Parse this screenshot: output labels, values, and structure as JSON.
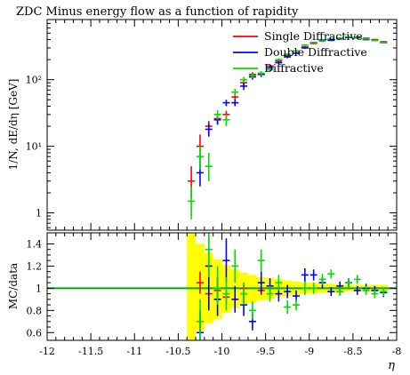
{
  "chart_data": {
    "type": "scatter",
    "title": "ZDC Minus energy flow as a function of rapidity",
    "xlabel": "η",
    "ylabel_top": "1/N, dE/dη [GeV]",
    "ylabel_bottom": "MC/data",
    "xlim": [
      -12,
      -8
    ],
    "ylim_top": [
      0.55,
      800
    ],
    "yscale_top": "log",
    "ylim_bottom": [
      0.53,
      1.5
    ],
    "x_ticks": [
      -12,
      -11.5,
      -11,
      -10.5,
      -10,
      -9.5,
      -9,
      -8.5,
      -8
    ],
    "x_tick_labels": [
      "-12",
      "-11.5",
      "-11",
      "-10.5",
      "-10",
      "-9.5",
      "-9",
      "-8.5",
      "-8"
    ],
    "y_ticks_top": [
      1,
      10,
      100
    ],
    "y_tick_labels_top": [
      "1",
      "10¹",
      "10²"
    ],
    "y_ticks_bottom": [
      0.6,
      0.8,
      1.0,
      1.2,
      1.4
    ],
    "y_tick_labels_bottom": [
      "0.6",
      "0.8",
      "1",
      "1.2",
      "1.4"
    ],
    "legend_position": "top-right",
    "series": [
      {
        "name": "Single Diffractive",
        "color": "#ff0000",
        "points": [
          [
            -10.35,
            3.0,
            1.7,
            5.0
          ],
          [
            -10.25,
            10.0,
            6.0,
            15.0
          ],
          [
            -10.15,
            20.0,
            15.0,
            24.0
          ],
          [
            -10.05,
            26.0,
            22.0,
            30.0
          ],
          [
            -9.95,
            30.0,
            25.0,
            34.0
          ],
          [
            -9.85,
            55.0,
            48.0,
            62.0
          ],
          [
            -9.75,
            90.0,
            80.0,
            100.0
          ],
          [
            -9.65,
            120.0,
            110.0,
            130.0
          ],
          [
            -9.55,
            120.0,
            110.0,
            130.0
          ],
          [
            -9.45,
            160.0,
            150.0,
            170.0
          ],
          [
            -9.35,
            190.0,
            180.0,
            200.0
          ],
          [
            -9.25,
            230.0,
            220.0,
            240.0
          ],
          [
            -9.15,
            270.0,
            260.0,
            280.0
          ],
          [
            -9.05,
            310.0,
            300.0,
            320.0
          ],
          [
            -8.95,
            350.0,
            340.0,
            360.0
          ],
          [
            -8.85,
            380.0,
            370.0,
            390.0
          ],
          [
            -8.75,
            400.0,
            390.0,
            410.0
          ],
          [
            -8.65,
            420.0,
            410.0,
            430.0
          ],
          [
            -8.55,
            440.0,
            430.0,
            450.0
          ],
          [
            -8.45,
            430.0,
            420.0,
            440.0
          ],
          [
            -8.35,
            420.0,
            410.0,
            430.0
          ],
          [
            -8.25,
            400.0,
            390.0,
            410.0
          ],
          [
            -8.15,
            370.0,
            360.0,
            380.0
          ]
        ]
      },
      {
        "name": "Double Diffractive",
        "color": "#0000ff",
        "points": [
          [
            -10.25,
            4.0,
            2.5,
            6.0
          ],
          [
            -10.15,
            18.0,
            14.0,
            22.0
          ],
          [
            -10.05,
            25.0,
            21.0,
            29.0
          ],
          [
            -9.95,
            45.0,
            40.0,
            50.0
          ],
          [
            -9.85,
            45.0,
            40.0,
            50.0
          ],
          [
            -9.75,
            80.0,
            70.0,
            90.0
          ],
          [
            -9.65,
            110.0,
            100.0,
            120.0
          ],
          [
            -9.55,
            120.0,
            110.0,
            130.0
          ],
          [
            -9.45,
            150.0,
            140.0,
            160.0
          ],
          [
            -9.35,
            180.0,
            170.0,
            190.0
          ],
          [
            -9.25,
            220.0,
            210.0,
            230.0
          ],
          [
            -9.15,
            250.0,
            240.0,
            260.0
          ],
          [
            -9.05,
            300.0,
            290.0,
            310.0
          ],
          [
            -8.95,
            360.0,
            350.0,
            370.0
          ],
          [
            -8.85,
            390.0,
            380.0,
            400.0
          ],
          [
            -8.75,
            390.0,
            380.0,
            400.0
          ],
          [
            -8.65,
            410.0,
            400.0,
            420.0
          ],
          [
            -8.55,
            430.0,
            420.0,
            440.0
          ],
          [
            -8.45,
            430.0,
            420.0,
            440.0
          ],
          [
            -8.35,
            400.0,
            390.0,
            410.0
          ],
          [
            -8.25,
            390.0,
            380.0,
            400.0
          ],
          [
            -8.15,
            360.0,
            350.0,
            370.0
          ]
        ]
      },
      {
        "name": "Diffractive",
        "color": "#00dd00",
        "points": [
          [
            -10.35,
            1.5,
            0.8,
            2.5
          ],
          [
            -10.25,
            7.0,
            4.5,
            10.0
          ],
          [
            -10.15,
            5.0,
            3.0,
            8.0
          ],
          [
            -10.05,
            30.0,
            25.0,
            35.0
          ],
          [
            -9.95,
            25.0,
            20.0,
            30.0
          ],
          [
            -9.85,
            65.0,
            57.0,
            73.0
          ],
          [
            -9.75,
            100.0,
            90.0,
            110.0
          ],
          [
            -9.65,
            115.0,
            105.0,
            125.0
          ],
          [
            -9.55,
            125.0,
            115.0,
            135.0
          ],
          [
            -9.45,
            140.0,
            130.0,
            150.0
          ],
          [
            -9.35,
            200.0,
            190.0,
            210.0
          ],
          [
            -9.25,
            240.0,
            230.0,
            250.0
          ],
          [
            -9.15,
            270.0,
            260.0,
            280.0
          ],
          [
            -9.05,
            330.0,
            320.0,
            340.0
          ],
          [
            -8.95,
            360.0,
            350.0,
            370.0
          ],
          [
            -8.85,
            380.0,
            370.0,
            390.0
          ],
          [
            -8.75,
            410.0,
            400.0,
            420.0
          ],
          [
            -8.65,
            420.0,
            410.0,
            430.0
          ],
          [
            -8.55,
            440.0,
            430.0,
            450.0
          ],
          [
            -8.45,
            420.0,
            410.0,
            430.0
          ],
          [
            -8.35,
            410.0,
            400.0,
            420.0
          ],
          [
            -8.25,
            390.0,
            380.0,
            400.0
          ],
          [
            -8.15,
            360.0,
            350.0,
            370.0
          ]
        ]
      }
    ],
    "ratio_band": {
      "color": "#ffff00",
      "bins": [
        [
          -10.4,
          -10.3,
          0.53,
          1.5
        ],
        [
          -10.3,
          -10.2,
          0.62,
          1.4
        ],
        [
          -10.2,
          -10.1,
          0.68,
          1.32
        ],
        [
          -10.1,
          -10.0,
          0.72,
          1.26
        ],
        [
          -10.0,
          -9.9,
          0.78,
          1.21
        ],
        [
          -9.9,
          -9.8,
          0.82,
          1.17
        ],
        [
          -9.8,
          -9.7,
          0.85,
          1.14
        ],
        [
          -9.7,
          -9.6,
          0.87,
          1.12
        ],
        [
          -9.6,
          -9.5,
          0.89,
          1.1
        ],
        [
          -9.5,
          -9.4,
          0.9,
          1.09
        ],
        [
          -9.4,
          -9.3,
          0.92,
          1.08
        ],
        [
          -9.3,
          -9.2,
          0.93,
          1.07
        ],
        [
          -9.2,
          -9.1,
          0.94,
          1.06
        ],
        [
          -9.1,
          -9.0,
          0.95,
          1.05
        ],
        [
          -9.0,
          -8.9,
          0.95,
          1.05
        ],
        [
          -8.9,
          -8.8,
          0.96,
          1.04
        ],
        [
          -8.8,
          -8.7,
          0.96,
          1.04
        ],
        [
          -8.7,
          -8.6,
          0.96,
          1.04
        ],
        [
          -8.6,
          -8.5,
          0.97,
          1.03
        ],
        [
          -8.5,
          -8.4,
          0.97,
          1.03
        ],
        [
          -8.4,
          -8.3,
          0.97,
          1.03
        ],
        [
          -8.3,
          -8.2,
          0.97,
          1.03
        ],
        [
          -8.2,
          -8.1,
          0.97,
          1.03
        ]
      ]
    },
    "ratio_reference": {
      "value": 1.0,
      "color": "#00aa00"
    },
    "ratio_series": [
      {
        "name": "Single Diffractive",
        "color": "#ff0000",
        "points": [
          [
            -10.25,
            1.05,
            0.95,
            1.15
          ],
          [
            -10.15,
            0.95,
            0.88,
            1.02
          ],
          [
            -10.05,
            0.98,
            0.92,
            1.04
          ],
          [
            -9.95,
            0.92,
            0.86,
            0.98
          ],
          [
            -9.75,
            1.0,
            0.95,
            1.05
          ],
          [
            -9.55,
            0.98,
            0.94,
            1.02
          ]
        ]
      },
      {
        "name": "Double Diffractive",
        "color": "#0000ff",
        "points": [
          [
            -10.25,
            0.6,
            0.45,
            0.8
          ],
          [
            -10.15,
            1.2,
            0.8,
            1.55
          ],
          [
            -10.05,
            0.9,
            0.75,
            1.1
          ],
          [
            -9.95,
            1.25,
            1.05,
            1.45
          ],
          [
            -9.85,
            0.9,
            0.78,
            1.02
          ],
          [
            -9.75,
            0.85,
            0.75,
            0.95
          ],
          [
            -9.65,
            0.7,
            0.62,
            0.78
          ],
          [
            -9.55,
            1.05,
            0.95,
            1.15
          ],
          [
            -9.45,
            1.02,
            0.95,
            1.09
          ],
          [
            -9.35,
            0.95,
            0.88,
            1.02
          ],
          [
            -9.25,
            0.97,
            0.91,
            1.03
          ],
          [
            -9.15,
            0.93,
            0.88,
            0.98
          ],
          [
            -9.05,
            1.12,
            1.06,
            1.18
          ],
          [
            -8.95,
            1.12,
            1.07,
            1.17
          ],
          [
            -8.85,
            1.05,
            1.0,
            1.1
          ],
          [
            -8.75,
            0.97,
            0.93,
            1.01
          ],
          [
            -8.65,
            1.02,
            0.98,
            1.06
          ],
          [
            -8.55,
            1.05,
            1.01,
            1.09
          ],
          [
            -8.45,
            0.98,
            0.94,
            1.02
          ],
          [
            -8.35,
            1.0,
            0.96,
            1.04
          ],
          [
            -8.25,
            0.98,
            0.94,
            1.02
          ],
          [
            -8.15,
            0.96,
            0.92,
            1.0
          ]
        ]
      },
      {
        "name": "Diffractive",
        "color": "#00dd00",
        "points": [
          [
            -10.25,
            0.7,
            0.53,
            0.9
          ],
          [
            -10.15,
            1.35,
            1.1,
            1.5
          ],
          [
            -10.05,
            1.0,
            0.85,
            1.2
          ],
          [
            -9.95,
            0.95,
            0.8,
            1.1
          ],
          [
            -9.85,
            1.2,
            1.05,
            1.35
          ],
          [
            -9.75,
            0.95,
            0.85,
            1.05
          ],
          [
            -9.65,
            0.8,
            0.72,
            0.88
          ],
          [
            -9.55,
            1.25,
            1.15,
            1.35
          ],
          [
            -9.45,
            0.95,
            0.88,
            1.02
          ],
          [
            -9.35,
            1.05,
            0.98,
            1.12
          ],
          [
            -9.25,
            0.83,
            0.77,
            0.89
          ],
          [
            -9.15,
            0.85,
            0.8,
            0.9
          ],
          [
            -9.05,
            1.0,
            0.94,
            1.06
          ],
          [
            -8.95,
            1.0,
            0.95,
            1.05
          ],
          [
            -8.85,
            1.08,
            1.03,
            1.13
          ],
          [
            -8.75,
            1.13,
            1.09,
            1.17
          ],
          [
            -8.65,
            0.97,
            0.93,
            1.01
          ],
          [
            -8.55,
            1.05,
            1.01,
            1.09
          ],
          [
            -8.45,
            1.08,
            1.04,
            1.12
          ],
          [
            -8.35,
            0.98,
            0.94,
            1.02
          ],
          [
            -8.25,
            0.95,
            0.91,
            0.99
          ],
          [
            -8.15,
            0.97,
            0.93,
            1.01
          ]
        ]
      }
    ]
  }
}
